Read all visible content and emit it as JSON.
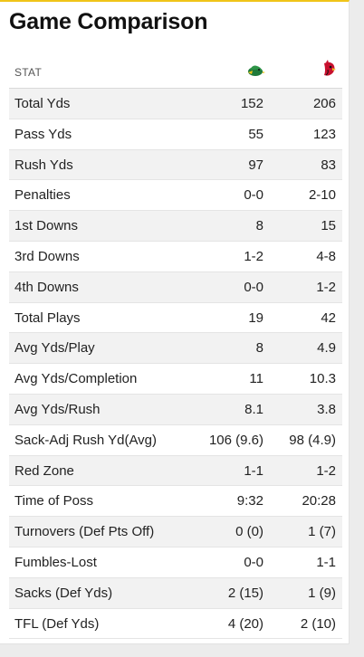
{
  "title": "Game Comparison",
  "header": {
    "stat_label": "STAT",
    "home_team_icon": "green-bird-logo-icon",
    "away_team_icon": "red-bird-logo-icon"
  },
  "colors": {
    "accent": "#f0c419",
    "home_team": "#1f7a3a",
    "away_team": "#c8102e"
  },
  "rows": [
    {
      "stat": "Total Yds",
      "home": "152",
      "away": "206"
    },
    {
      "stat": "Pass Yds",
      "home": "55",
      "away": "123"
    },
    {
      "stat": "Rush Yds",
      "home": "97",
      "away": "83"
    },
    {
      "stat": "Penalties",
      "home": "0-0",
      "away": "2-10"
    },
    {
      "stat": "1st Downs",
      "home": "8",
      "away": "15"
    },
    {
      "stat": "3rd Downs",
      "home": "1-2",
      "away": "4-8"
    },
    {
      "stat": "4th Downs",
      "home": "0-0",
      "away": "1-2"
    },
    {
      "stat": "Total Plays",
      "home": "19",
      "away": "42"
    },
    {
      "stat": "Avg Yds/Play",
      "home": "8",
      "away": "4.9"
    },
    {
      "stat": "Avg Yds/Completion",
      "home": "11",
      "away": "10.3"
    },
    {
      "stat": "Avg Yds/Rush",
      "home": "8.1",
      "away": "3.8"
    },
    {
      "stat": "Sack-Adj Rush Yd(Avg)",
      "home": "106 (9.6)",
      "away": "98 (4.9)"
    },
    {
      "stat": "Red Zone",
      "home": "1-1",
      "away": "1-2"
    },
    {
      "stat": "Time of Poss",
      "home": "9:32",
      "away": "20:28"
    },
    {
      "stat": "Turnovers (Def Pts Off)",
      "home": "0 (0)",
      "away": "1 (7)"
    },
    {
      "stat": "Fumbles-Lost",
      "home": "0-0",
      "away": "1-1"
    },
    {
      "stat": "Sacks (Def Yds)",
      "home": "2 (15)",
      "away": "1 (9)"
    },
    {
      "stat": "TFL (Def Yds)",
      "home": "4 (20)",
      "away": "2 (10)"
    }
  ]
}
